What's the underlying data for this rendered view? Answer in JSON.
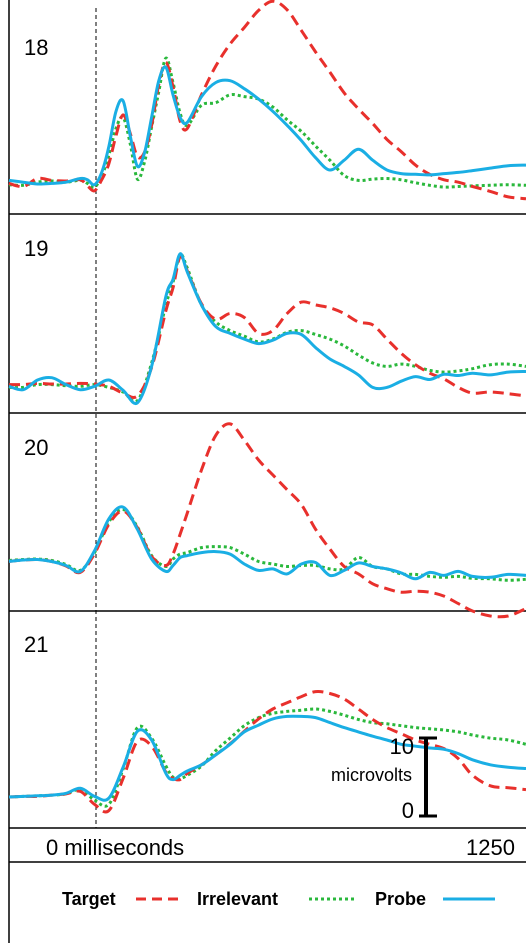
{
  "chart_data": {
    "type": "line",
    "colors": {
      "Target": "#e8302c",
      "Irrelevant": "#2ab83c",
      "Probe": "#1aaee4"
    },
    "line_styles": {
      "Target": "dashed",
      "Irrelevant": "dotted",
      "Probe": "solid"
    },
    "x_axis": {
      "start_label": "0 milliseconds",
      "end_label": "1250",
      "xlim": [
        -200,
        1250
      ],
      "stimulus_onset_ms": 0
    },
    "scale_bar": {
      "top_label": "10",
      "bottom_label": "0",
      "unit_label": "microvolts",
      "range_microvolts": [
        0,
        10
      ]
    },
    "legend": [
      {
        "label": "Target",
        "key": "Target"
      },
      {
        "label": "Irrelevant",
        "key": "Irrelevant"
      },
      {
        "label": "Probe",
        "key": "Probe"
      }
    ],
    "panels": [
      {
        "label": "18",
        "ylim": [
          -5,
          30
        ],
        "x": [
          -200,
          -160,
          -120,
          -80,
          -40,
          0,
          20,
          40,
          60,
          80,
          100,
          120,
          140,
          160,
          180,
          200,
          220,
          240,
          260,
          280,
          300,
          340,
          380,
          420,
          460,
          500,
          540,
          580,
          620,
          660,
          700,
          740,
          780,
          820,
          860,
          900,
          940,
          980,
          1020,
          1060,
          1100,
          1150,
          1200,
          1250
        ],
        "series": [
          {
            "name": "Target",
            "values": [
              0,
              -0.5,
              0.8,
              0.5,
              0.4,
              0.6,
              -0.4,
              -1.2,
              0.6,
              3.2,
              7.8,
              11.2,
              8.2,
              4.4,
              5.1,
              9.5,
              16.2,
              19.8,
              15.8,
              10.2,
              9.0,
              14.5,
              19.2,
              22.8,
              25.5,
              28.3,
              29.8,
              28.4,
              25.0,
              21.5,
              18.2,
              14.8,
              12.2,
              9.8,
              7.2,
              5.2,
              3.0,
              1.5,
              0.6,
              0.2,
              -0.5,
              -1.3,
              -2.2,
              -2.5
            ]
          },
          {
            "name": "Irrelevant",
            "values": [
              -0.2,
              -0.3,
              0.2,
              0.4,
              0.2,
              0.5,
              0.0,
              -0.6,
              1.2,
              4.6,
              9.0,
              10.8,
              6.5,
              0.7,
              3.5,
              9.2,
              15.0,
              20.5,
              16.5,
              11.5,
              9.5,
              12.8,
              13.2,
              14.5,
              14.2,
              13.8,
              12.5,
              10.4,
              8.5,
              6.1,
              3.8,
              1.3,
              0.5,
              0.7,
              0.8,
              0.6,
              0.1,
              -0.3,
              -0.6,
              -0.5,
              -0.4,
              -0.3,
              -0.2,
              -0.3
            ]
          },
          {
            "name": "Probe",
            "values": [
              0.5,
              0.2,
              -0.1,
              0.0,
              0.2,
              0.8,
              0.6,
              -0.2,
              1.8,
              6.0,
              11.8,
              13.5,
              7.8,
              2.8,
              5.0,
              10.8,
              16.8,
              19.0,
              14.5,
              10.8,
              10.0,
              14.2,
              16.5,
              16.8,
              15.5,
              13.8,
              11.8,
              9.5,
              7.0,
              4.2,
              2.2,
              3.8,
              5.6,
              3.8,
              2.2,
              1.6,
              1.5,
              1.4,
              1.6,
              1.8,
              2.1,
              2.5,
              2.9,
              3.0
            ]
          }
        ]
      },
      {
        "label": "19",
        "ylim": [
          -5,
          30
        ],
        "x": [
          -200,
          -160,
          -120,
          -80,
          -40,
          0,
          40,
          80,
          120,
          160,
          200,
          240,
          260,
          280,
          300,
          340,
          380,
          420,
          460,
          500,
          540,
          580,
          620,
          660,
          700,
          740,
          780,
          820,
          860,
          900,
          940,
          980,
          1020,
          1060,
          1100,
          1150,
          1200,
          1250
        ],
        "series": [
          {
            "name": "Target",
            "values": [
              0,
              0.0,
              0.2,
              0.1,
              0.1,
              0.2,
              0.1,
              -0.3,
              -1.5,
              -2.0,
              3.0,
              13.0,
              17.0,
              22.5,
              20.0,
              14.2,
              11.5,
              12.5,
              11.8,
              9.0,
              9.5,
              12.5,
              14.5,
              14.0,
              13.5,
              12.5,
              11.0,
              10.5,
              8.0,
              5.5,
              3.5,
              2.0,
              1.0,
              -0.5,
              -1.5,
              -1.3,
              -1.6,
              -2.0
            ]
          },
          {
            "name": "Irrelevant",
            "values": [
              -0.5,
              -0.5,
              0.0,
              0.0,
              -0.2,
              -0.3,
              0.0,
              -0.5,
              -1.3,
              -2.8,
              3.8,
              14.0,
              18.0,
              22.8,
              20.5,
              14.0,
              11.0,
              9.5,
              8.5,
              7.5,
              8.0,
              9.2,
              9.5,
              8.8,
              8.0,
              6.8,
              5.2,
              3.8,
              3.2,
              3.6,
              3.2,
              2.5,
              2.2,
              2.4,
              2.8,
              3.5,
              3.6,
              3.2
            ]
          },
          {
            "name": "Probe",
            "values": [
              -0.3,
              -0.9,
              0.8,
              1.2,
              0.0,
              -0.9,
              -0.3,
              0.8,
              -1.0,
              -3.2,
              3.2,
              15.5,
              18.5,
              23.0,
              19.8,
              14.0,
              10.2,
              9.0,
              8.0,
              7.2,
              7.8,
              9.0,
              8.8,
              6.5,
              4.5,
              3.2,
              1.7,
              -0.5,
              -0.5,
              0.6,
              1.4,
              0.9,
              1.8,
              1.6,
              2.0,
              1.7,
              2.2,
              2.3
            ]
          }
        ]
      },
      {
        "label": "20",
        "ylim": [
          -10,
          30
        ],
        "x": [
          -200,
          -160,
          -120,
          -80,
          -40,
          0,
          40,
          80,
          120,
          160,
          200,
          240,
          260,
          280,
          300,
          340,
          380,
          420,
          460,
          500,
          540,
          580,
          620,
          660,
          700,
          740,
          780,
          820,
          860,
          900,
          940,
          980,
          1020,
          1060,
          1100,
          1150,
          1200,
          1250
        ],
        "series": [
          {
            "name": "Target",
            "values": [
              0,
              0.3,
              0.4,
              0.0,
              -0.9,
              -2.2,
              1.6,
              7.5,
              10.2,
              6.8,
              1.0,
              -0.8,
              1.5,
              5.5,
              9.8,
              18.5,
              25.5,
              27.8,
              24.5,
              20.5,
              17.5,
              14.5,
              11.5,
              6.5,
              2.5,
              -1.0,
              -2.5,
              -4.5,
              -5.5,
              -6.2,
              -6.0,
              -6.2,
              -7.0,
              -8.5,
              -10.0,
              -11.0,
              -11.0,
              -9.5
            ]
          },
          {
            "name": "Irrelevant",
            "values": [
              0.2,
              0.4,
              0.5,
              0.2,
              -0.6,
              -1.8,
              1.8,
              8.0,
              10.5,
              7.0,
              1.2,
              -1.0,
              0.5,
              1.5,
              1.8,
              2.8,
              3.0,
              2.8,
              1.5,
              0.0,
              -0.5,
              -1.0,
              -0.8,
              -0.8,
              -1.5,
              -1.5,
              0.8,
              -1.0,
              -1.5,
              -2.5,
              -2.6,
              -3.0,
              -3.2,
              -3.0,
              -3.4,
              -3.5,
              -3.8,
              -3.6
            ]
          },
          {
            "name": "Probe",
            "values": [
              0.0,
              0.3,
              0.4,
              0.0,
              -0.8,
              -2.0,
              2.2,
              8.6,
              11.0,
              6.5,
              0.5,
              -2.0,
              -0.8,
              0.8,
              1.2,
              1.8,
              2.0,
              1.5,
              -0.5,
              -1.8,
              -1.5,
              -2.5,
              -0.5,
              -0.2,
              -2.8,
              -1.8,
              -0.3,
              -1.0,
              -1.5,
              -2.3,
              -3.5,
              -2.2,
              -2.8,
              -2.0,
              -3.0,
              -3.2,
              -2.6,
              -2.8
            ]
          }
        ]
      },
      {
        "label": "21",
        "ylim": [
          -5,
          30
        ],
        "x": [
          -200,
          -160,
          -120,
          -80,
          -40,
          0,
          40,
          80,
          120,
          160,
          200,
          240,
          260,
          280,
          300,
          340,
          380,
          420,
          460,
          500,
          540,
          580,
          620,
          660,
          700,
          740,
          780,
          820,
          860,
          900,
          940,
          980,
          1020,
          1060,
          1100,
          1150,
          1200,
          1250
        ],
        "series": [
          {
            "name": "Target",
            "values": [
              0,
              0.1,
              0.1,
              0.3,
              0.5,
              0.9,
              -1.2,
              -2.2,
              3.0,
              9.0,
              8.2,
              4.0,
              3.0,
              2.8,
              3.8,
              5.2,
              6.8,
              8.6,
              10.6,
              12.6,
              14.2,
              15.2,
              16.2,
              17.0,
              16.7,
              15.8,
              14.2,
              12.5,
              11.2,
              10.2,
              9.2,
              8.5,
              7.8,
              6.2,
              3.5,
              1.8,
              1.5,
              1.2
            ]
          },
          {
            "name": "Irrelevant",
            "values": [
              0,
              0.1,
              0.2,
              0.3,
              0.5,
              1.2,
              -0.5,
              -1.2,
              4.5,
              11.2,
              9.5,
              5.0,
              3.2,
              3.0,
              3.5,
              5.0,
              7.5,
              9.5,
              11.5,
              12.8,
              13.5,
              13.8,
              14.0,
              14.2,
              13.8,
              13.2,
              12.5,
              12.0,
              11.8,
              11.5,
              11.2,
              11.0,
              10.8,
              10.5,
              10.0,
              9.5,
              9.2,
              8.5
            ]
          },
          {
            "name": "Probe",
            "values": [
              0,
              0.1,
              0.2,
              0.3,
              0.6,
              1.4,
              0.1,
              -0.2,
              4.8,
              10.6,
              9.2,
              3.8,
              2.8,
              3.5,
              4.2,
              5.2,
              6.8,
              8.5,
              10.5,
              11.6,
              12.6,
              13.0,
              13.0,
              12.8,
              12.0,
              11.2,
              10.5,
              9.8,
              9.2,
              8.5,
              8.2,
              7.9,
              7.7,
              7.0,
              6.0,
              5.2,
              4.8,
              4.6
            ]
          }
        ]
      }
    ]
  }
}
